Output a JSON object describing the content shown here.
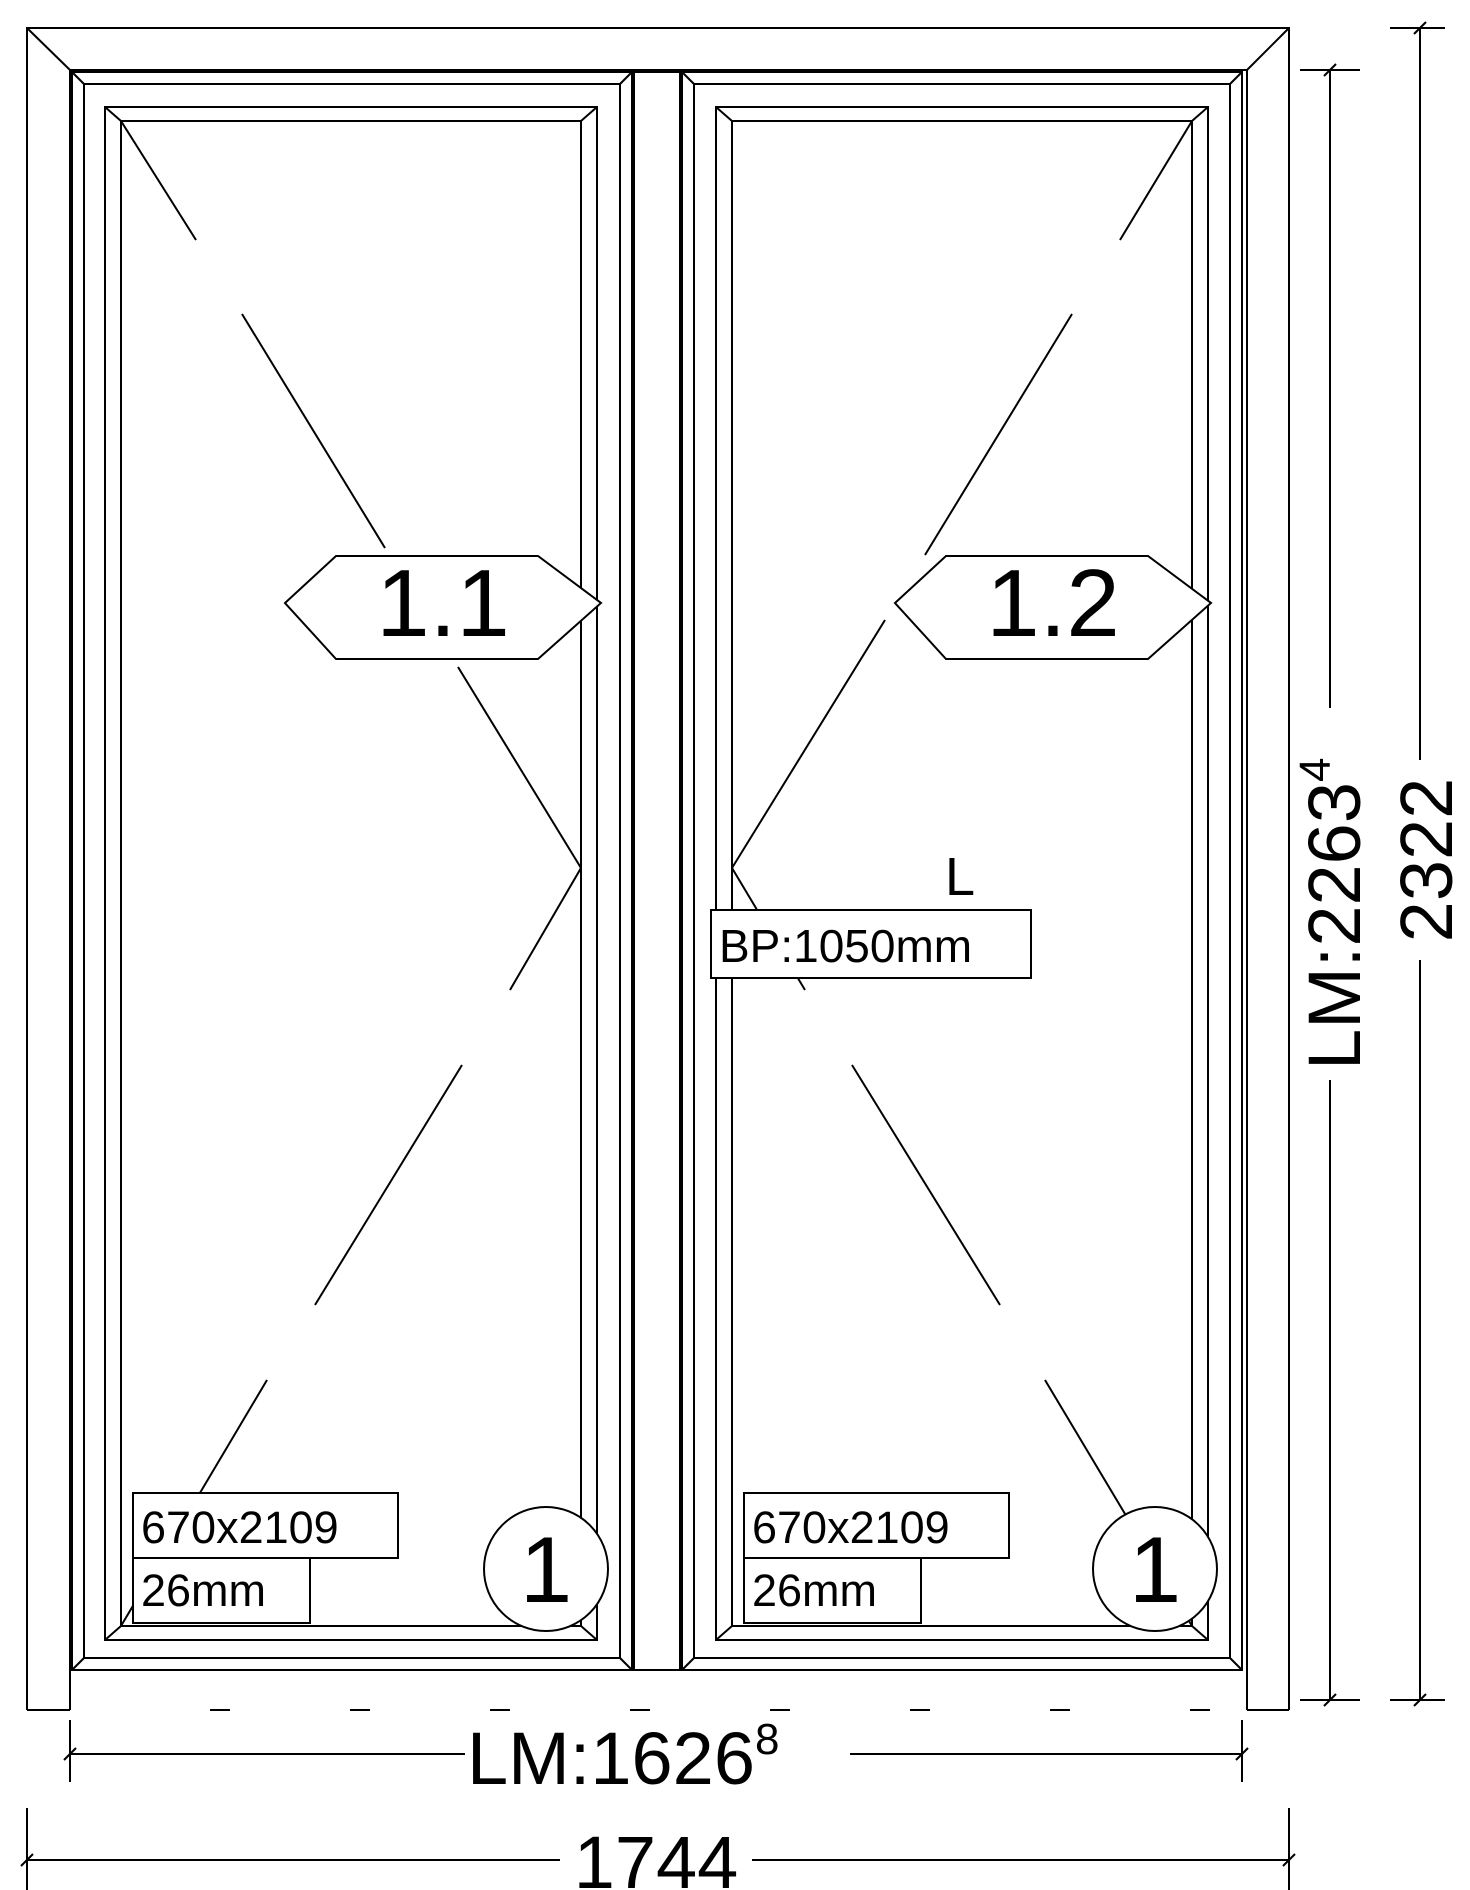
{
  "drawing": {
    "colors": {
      "line": "#000000",
      "background": "#ffffff"
    },
    "sashes": [
      {
        "id": "1.1",
        "label": "1.1",
        "glass_size": "670x2109",
        "glass_thickness": "26mm",
        "glass_type": "1"
      },
      {
        "id": "1.2",
        "label": "1.2",
        "glass_size": "670x2109",
        "glass_thickness": "26mm",
        "glass_type": "1"
      }
    ],
    "handle_side": "L",
    "handle_height": "BP:1050mm",
    "dimensions": {
      "light_width_prefix": "LM:1626",
      "light_width_sup": "8",
      "overall_width": "1744",
      "light_height_prefix": "LM:2263",
      "light_height_sup": "4",
      "overall_height": "2322"
    }
  }
}
